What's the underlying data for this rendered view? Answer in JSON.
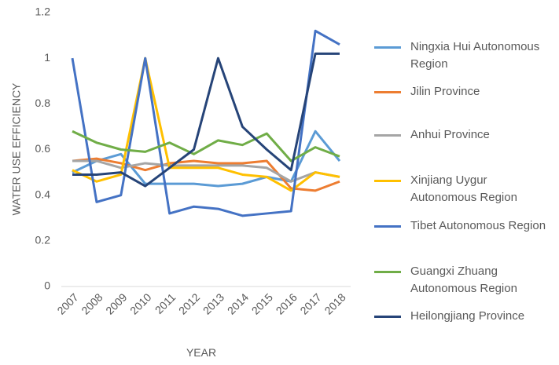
{
  "chart_data": {
    "type": "line",
    "x_label": "YEAR",
    "y_label": "WATER USE EFFICIENCY",
    "categories": [
      "2007",
      "2008",
      "2009",
      "2010",
      "2011",
      "2012",
      "2013",
      "2014",
      "2015",
      "2016",
      "2017",
      "2018"
    ],
    "ylim": [
      0,
      1.2
    ],
    "yticks": [
      0,
      0.2,
      0.4,
      0.6,
      0.8,
      1,
      1.2
    ],
    "grid": false,
    "legend": "right",
    "series": [
      {
        "name": "Ningxia Hui Autonomous Region",
        "color": "#5b9bd5",
        "values": [
          0.5,
          0.55,
          0.58,
          0.45,
          0.45,
          0.45,
          0.44,
          0.45,
          0.48,
          0.46,
          0.68,
          0.55
        ]
      },
      {
        "name": "Jilin Province",
        "color": "#ed7d31",
        "values": [
          0.55,
          0.56,
          0.54,
          0.51,
          0.54,
          0.55,
          0.54,
          0.54,
          0.55,
          0.43,
          0.42,
          0.46
        ]
      },
      {
        "name": "Anhui Province",
        "color": "#a5a5a5",
        "values": [
          0.55,
          0.55,
          0.52,
          0.54,
          0.53,
          0.53,
          0.53,
          0.53,
          0.52,
          0.46,
          0.5,
          0.48
        ]
      },
      {
        "name": "Xinjiang Uygur Autonomous Region",
        "color": "#ffc000",
        "values": [
          0.51,
          0.46,
          0.49,
          1.0,
          0.52,
          0.52,
          0.52,
          0.49,
          0.48,
          0.42,
          0.5,
          0.48
        ]
      },
      {
        "name": "Tibet Autonomous Region",
        "color": "#4472c4",
        "values": [
          1.0,
          0.37,
          0.4,
          1.0,
          0.32,
          0.35,
          0.34,
          0.31,
          0.32,
          0.33,
          1.12,
          1.06
        ]
      },
      {
        "name": "Guangxi Zhuang Autonomous Region",
        "color": "#70ad47",
        "values": [
          0.68,
          0.63,
          0.6,
          0.59,
          0.63,
          0.58,
          0.64,
          0.62,
          0.67,
          0.55,
          0.61,
          0.57
        ]
      },
      {
        "name": "Heilongjiang Province",
        "color": "#264478",
        "values": [
          0.49,
          0.49,
          0.5,
          0.44,
          0.52,
          0.6,
          1.0,
          0.7,
          0.6,
          0.51,
          1.02,
          1.02
        ]
      }
    ]
  }
}
